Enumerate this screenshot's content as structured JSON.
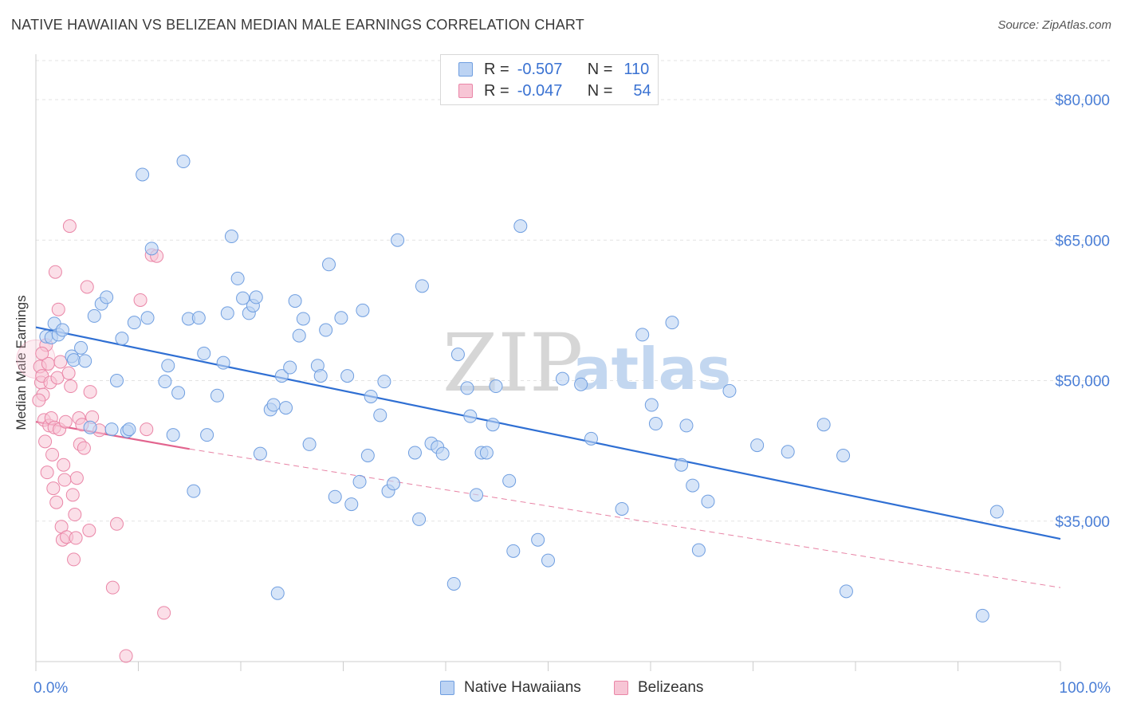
{
  "title": "NATIVE HAWAIIAN VS BELIZEAN MEDIAN MALE EARNINGS CORRELATION CHART",
  "source": "Source: ZipAtlas.com",
  "watermark": {
    "zip": "ZIP",
    "atlas": "atlas"
  },
  "legend": {
    "rows": [
      {
        "r_label": "R =",
        "r_value": "-0.507",
        "n_label": "N =",
        "n_value": "110"
      },
      {
        "r_label": "R =",
        "r_value": "-0.047",
        "n_label": "N =",
        "n_value": "54"
      }
    ]
  },
  "colors": {
    "blue_fill": "#bcd3f3",
    "blue_stroke": "#6f9ee0",
    "blue_line": "#2f6fd3",
    "pink_fill": "#f7c5d5",
    "pink_stroke": "#ea86a7",
    "pink_line": "#e2648e",
    "tick_label": "#4a7ed6",
    "grid": "#e3e3e3"
  },
  "chart_data": {
    "type": "scatter",
    "title": "NATIVE HAWAIIAN VS BELIZEAN MEDIAN MALE EARNINGS CORRELATION CHART",
    "xlabel": "",
    "ylabel": "Median Male Earnings",
    "xlim": [
      0,
      100
    ],
    "ylim": [
      20000,
      84000
    ],
    "x_tick_labels": [
      "0.0%",
      "100.0%"
    ],
    "y_ticks": [
      35000,
      50000,
      65000,
      80000
    ],
    "y_tick_labels": [
      "$35,000",
      "$50,000",
      "$65,000",
      "$80,000"
    ],
    "series": [
      {
        "name": "Native Hawaiians",
        "r": -0.507,
        "n": 110,
        "trend": {
          "x0": 0,
          "y0": 55700,
          "x1": 100,
          "y1": 33100
        },
        "points": [
          [
            1.0,
            54700
          ],
          [
            1.5,
            54600
          ],
          [
            1.8,
            56100
          ],
          [
            2.2,
            54900
          ],
          [
            2.6,
            55400
          ],
          [
            3.5,
            52600
          ],
          [
            3.7,
            52200
          ],
          [
            4.4,
            53500
          ],
          [
            4.8,
            52100
          ],
          [
            5.3,
            45000
          ],
          [
            5.7,
            56900
          ],
          [
            6.4,
            58200
          ],
          [
            6.9,
            58900
          ],
          [
            7.4,
            44800
          ],
          [
            7.9,
            50000
          ],
          [
            8.4,
            54500
          ],
          [
            8.9,
            44600
          ],
          [
            9.1,
            44800
          ],
          [
            9.6,
            56200
          ],
          [
            10.4,
            72000
          ],
          [
            10.9,
            56700
          ],
          [
            11.3,
            64100
          ],
          [
            12.6,
            49900
          ],
          [
            12.9,
            51600
          ],
          [
            13.4,
            44200
          ],
          [
            13.9,
            48700
          ],
          [
            14.4,
            73400
          ],
          [
            14.9,
            56600
          ],
          [
            15.4,
            38200
          ],
          [
            15.9,
            56700
          ],
          [
            16.4,
            52900
          ],
          [
            16.7,
            44200
          ],
          [
            17.7,
            48400
          ],
          [
            18.3,
            51900
          ],
          [
            18.7,
            57200
          ],
          [
            19.1,
            65400
          ],
          [
            19.7,
            60900
          ],
          [
            20.2,
            58800
          ],
          [
            20.8,
            57200
          ],
          [
            21.2,
            58000
          ],
          [
            21.5,
            58900
          ],
          [
            21.9,
            42200
          ],
          [
            22.9,
            46900
          ],
          [
            23.2,
            47400
          ],
          [
            23.6,
            27300
          ],
          [
            24.0,
            50500
          ],
          [
            24.4,
            47100
          ],
          [
            24.8,
            51400
          ],
          [
            25.3,
            58500
          ],
          [
            25.7,
            54800
          ],
          [
            26.1,
            56600
          ],
          [
            26.7,
            43200
          ],
          [
            27.5,
            51600
          ],
          [
            27.8,
            50500
          ],
          [
            28.3,
            55400
          ],
          [
            28.6,
            62400
          ],
          [
            29.2,
            37600
          ],
          [
            29.8,
            56700
          ],
          [
            30.4,
            50500
          ],
          [
            30.8,
            36800
          ],
          [
            31.6,
            39200
          ],
          [
            31.9,
            57500
          ],
          [
            32.4,
            42000
          ],
          [
            32.7,
            48300
          ],
          [
            33.6,
            46300
          ],
          [
            34.0,
            49900
          ],
          [
            34.4,
            38200
          ],
          [
            34.9,
            39000
          ],
          [
            35.3,
            65000
          ],
          [
            37.0,
            42300
          ],
          [
            37.4,
            35200
          ],
          [
            37.7,
            60100
          ],
          [
            38.6,
            43300
          ],
          [
            39.2,
            42900
          ],
          [
            39.7,
            42200
          ],
          [
            40.8,
            28300
          ],
          [
            41.2,
            52800
          ],
          [
            42.1,
            49200
          ],
          [
            42.4,
            46200
          ],
          [
            43.0,
            37800
          ],
          [
            43.5,
            42300
          ],
          [
            44.0,
            42300
          ],
          [
            44.6,
            45300
          ],
          [
            44.9,
            49400
          ],
          [
            46.2,
            39300
          ],
          [
            46.6,
            31800
          ],
          [
            47.3,
            66500
          ],
          [
            49.0,
            33000
          ],
          [
            50.0,
            30800
          ],
          [
            51.4,
            50200
          ],
          [
            53.2,
            49600
          ],
          [
            54.2,
            43800
          ],
          [
            57.2,
            36300
          ],
          [
            59.2,
            54900
          ],
          [
            60.1,
            47400
          ],
          [
            60.5,
            45400
          ],
          [
            62.1,
            56200
          ],
          [
            63.0,
            41000
          ],
          [
            63.5,
            45200
          ],
          [
            64.1,
            38800
          ],
          [
            64.7,
            31900
          ],
          [
            65.6,
            37100
          ],
          [
            67.7,
            48900
          ],
          [
            70.4,
            43100
          ],
          [
            73.4,
            42400
          ],
          [
            76.9,
            45300
          ],
          [
            78.8,
            42000
          ],
          [
            79.1,
            27500
          ],
          [
            92.4,
            24900
          ],
          [
            93.8,
            36000
          ]
        ]
      },
      {
        "name": "Belizeans",
        "r": -0.047,
        "n": 54,
        "trend": {
          "x0": 0,
          "y0": 45600,
          "x1": 15,
          "y1": 42700
        },
        "trend_ext": {
          "x0": 15,
          "y0": 42700,
          "x1": 100,
          "y1": 27900
        },
        "points": [
          [
            0.4,
            51500
          ],
          [
            0.5,
            49800
          ],
          [
            0.6,
            50500
          ],
          [
            0.7,
            48500
          ],
          [
            0.8,
            45800
          ],
          [
            0.9,
            43500
          ],
          [
            1.0,
            53800
          ],
          [
            1.1,
            40200
          ],
          [
            1.2,
            51800
          ],
          [
            1.3,
            45200
          ],
          [
            1.4,
            49800
          ],
          [
            1.5,
            46000
          ],
          [
            1.6,
            42100
          ],
          [
            1.7,
            38500
          ],
          [
            1.8,
            45000
          ],
          [
            1.9,
            61600
          ],
          [
            2.0,
            37000
          ],
          [
            2.1,
            50300
          ],
          [
            2.2,
            57600
          ],
          [
            2.3,
            44800
          ],
          [
            2.4,
            52000
          ],
          [
            2.5,
            34400
          ],
          [
            2.6,
            33000
          ],
          [
            2.7,
            41000
          ],
          [
            2.8,
            39400
          ],
          [
            2.9,
            45600
          ],
          [
            3.0,
            33300
          ],
          [
            3.2,
            50800
          ],
          [
            3.3,
            66500
          ],
          [
            3.4,
            49400
          ],
          [
            3.6,
            37800
          ],
          [
            3.7,
            30900
          ],
          [
            3.8,
            35700
          ],
          [
            3.9,
            33200
          ],
          [
            4.0,
            39600
          ],
          [
            4.2,
            46000
          ],
          [
            4.3,
            43200
          ],
          [
            4.5,
            45300
          ],
          [
            4.7,
            42800
          ],
          [
            5.0,
            60000
          ],
          [
            5.2,
            34000
          ],
          [
            5.3,
            48800
          ],
          [
            5.5,
            46100
          ],
          [
            6.2,
            44700
          ],
          [
            7.5,
            27900
          ],
          [
            7.9,
            34700
          ],
          [
            8.8,
            20600
          ],
          [
            10.2,
            58600
          ],
          [
            10.8,
            44800
          ],
          [
            11.3,
            63400
          ],
          [
            11.8,
            63300
          ],
          [
            12.5,
            25200
          ],
          [
            0.3,
            47900
          ],
          [
            0.6,
            52900
          ]
        ]
      }
    ]
  }
}
